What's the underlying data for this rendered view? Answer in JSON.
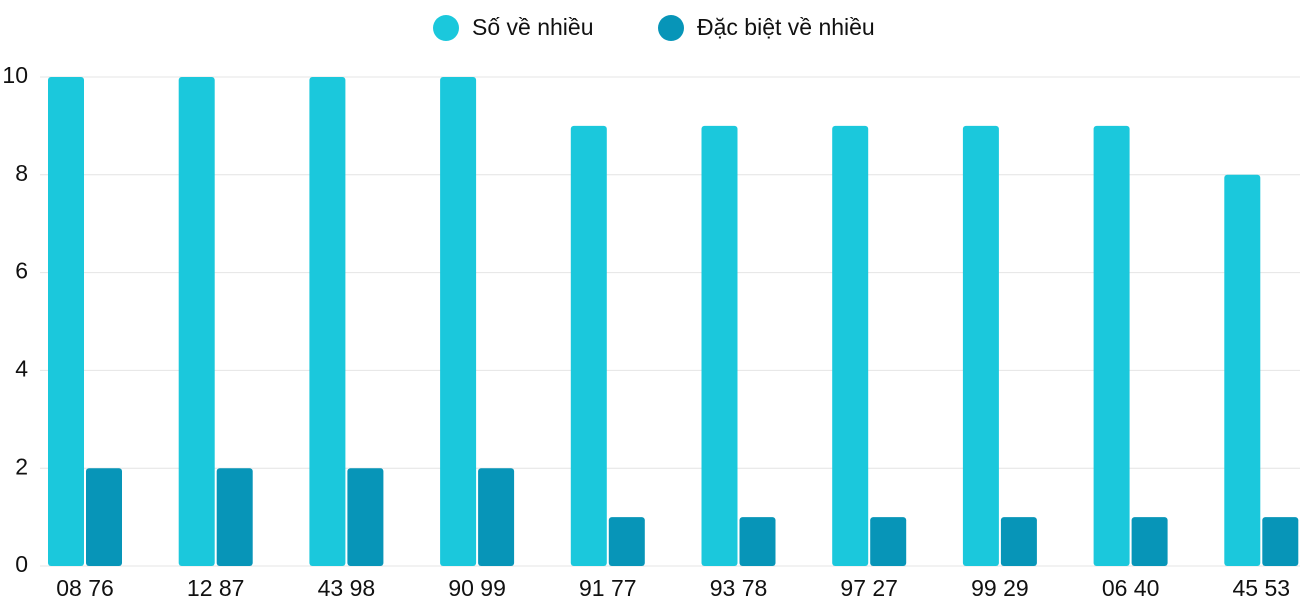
{
  "chart_data": {
    "type": "bar",
    "categories": [
      "08 76",
      "12 87",
      "43 98",
      "90 99",
      "91 77",
      "93 78",
      "97 27",
      "99 29",
      "06 40",
      "45 53"
    ],
    "series": [
      {
        "name": "Số về nhiều",
        "color": "#1bc8dc",
        "values": [
          10,
          10,
          10,
          10,
          9,
          9,
          9,
          9,
          9,
          8
        ]
      },
      {
        "name": "Đặc biệt về nhiều",
        "color": "#0795b8",
        "values": [
          2,
          2,
          2,
          2,
          1,
          1,
          1,
          1,
          1,
          1
        ]
      }
    ],
    "ylim": [
      0,
      10
    ],
    "yticks": [
      0,
      2,
      4,
      6,
      8,
      10
    ],
    "grid": true,
    "legend": "top"
  }
}
